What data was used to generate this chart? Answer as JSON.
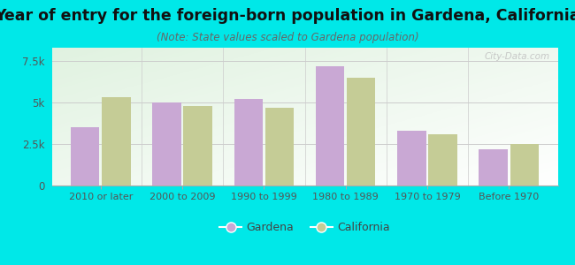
{
  "categories": [
    "2010 or later",
    "2000 to 2009",
    "1990 to 1999",
    "1980 to 1989",
    "1970 to 1979",
    "Before 1970"
  ],
  "gardena_values": [
    3500,
    5000,
    5200,
    7200,
    3300,
    2200
  ],
  "california_values": [
    5300,
    4800,
    4700,
    6500,
    3100,
    2500
  ],
  "gardena_color": "#c9a8d4",
  "california_color": "#c5cc96",
  "title": "Year of entry for the foreign-born population in Gardena, California",
  "subtitle": "(Note: State values scaled to Gardena population)",
  "title_fontsize": 12.5,
  "subtitle_fontsize": 8.5,
  "ytick_labels": [
    "0",
    "2.5k",
    "5k",
    "7.5k"
  ],
  "ytick_values": [
    0,
    2500,
    5000,
    7500
  ],
  "ylim": [
    0,
    8300
  ],
  "background_color": "#00e8e8",
  "legend_gardena": "Gardena",
  "legend_california": "California",
  "bar_width": 0.35,
  "bar_gap": 0.03,
  "watermark": "City-Data.com"
}
